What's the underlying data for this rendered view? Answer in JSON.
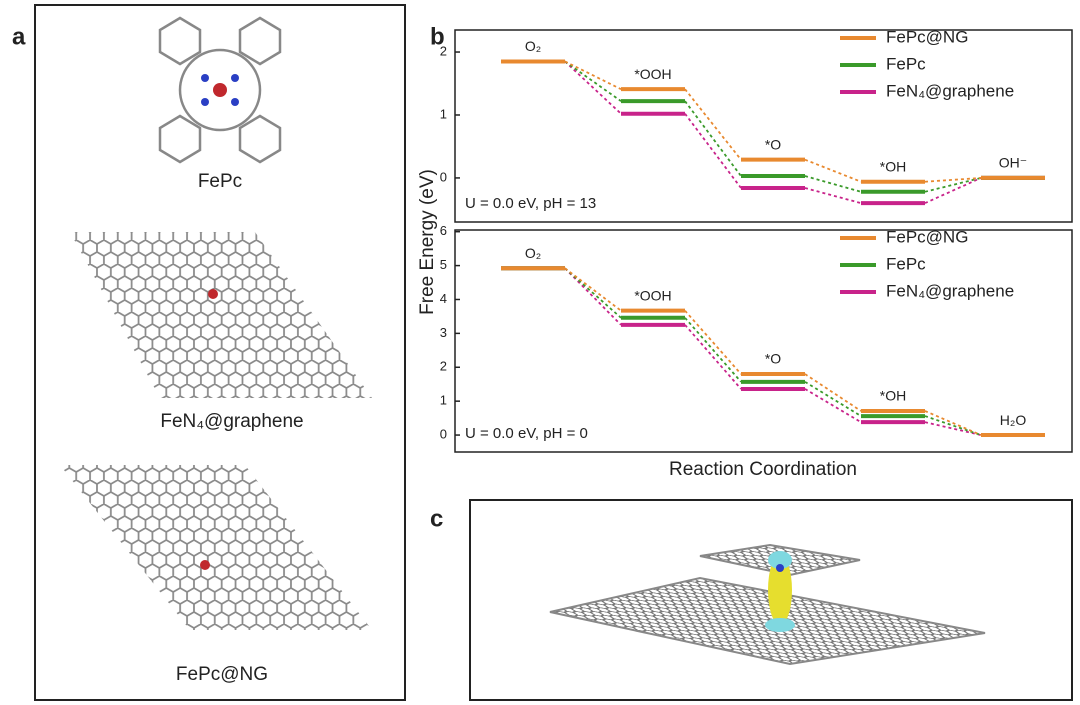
{
  "panel_labels": [
    "a",
    "b",
    "c"
  ],
  "molecules": [
    "FePc",
    "FeN₄@graphene",
    "FePc@NG"
  ],
  "y_axis_label": "Free Energy (eV)",
  "x_axis_label": "Reaction Coordination",
  "chart_data": [
    {
      "type": "level",
      "categories": [
        "O₂",
        "*OOH",
        "*O",
        "*OH",
        "OH⁻"
      ],
      "series": [
        {
          "name": "FePc@NG",
          "color": "#e8892f",
          "values": [
            1.85,
            1.41,
            0.29,
            -0.06,
            0
          ]
        },
        {
          "name": "FePc",
          "color": "#3a9a2a",
          "values": [
            1.85,
            1.22,
            0.03,
            -0.22,
            0
          ]
        },
        {
          "name": "FeN₄@graphene",
          "color": "#c8238a",
          "values": [
            1.85,
            1.02,
            -0.16,
            -0.4,
            0
          ]
        }
      ],
      "annotation": "U = 0.0 eV, pH = 13",
      "ylim": [
        -0.7,
        2.35
      ],
      "yticks": [
        0,
        1,
        2
      ]
    },
    {
      "type": "level",
      "categories": [
        "O₂",
        "*OOH",
        "*O",
        "*OH",
        "H₂O"
      ],
      "series": [
        {
          "name": "FePc@NG",
          "color": "#e8892f",
          "values": [
            4.92,
            3.67,
            1.8,
            0.71,
            0
          ]
        },
        {
          "name": "FePc",
          "color": "#3a9a2a",
          "values": [
            4.92,
            3.46,
            1.57,
            0.56,
            0
          ]
        },
        {
          "name": "FeN₄@graphene",
          "color": "#c8238a",
          "values": [
            4.92,
            3.25,
            1.36,
            0.38,
            0
          ]
        }
      ],
      "annotation": "U = 0.0 eV, pH = 0",
      "ylim": [
        -0.5,
        6.05
      ],
      "yticks": [
        0,
        1,
        2,
        3,
        4,
        5,
        6
      ]
    }
  ]
}
